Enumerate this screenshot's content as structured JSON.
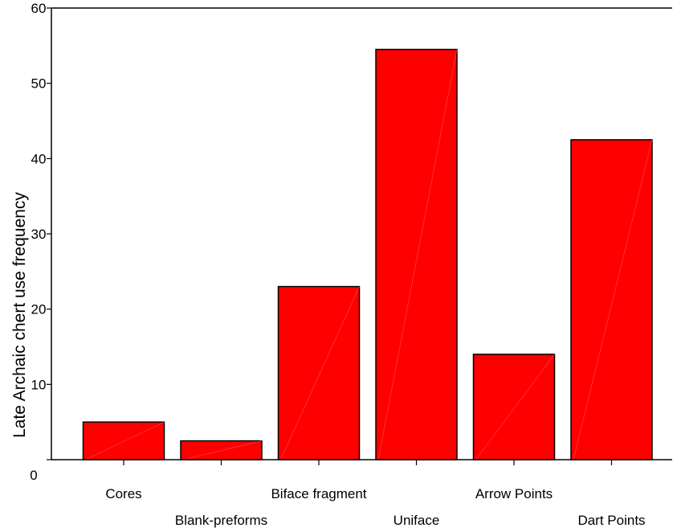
{
  "chart_data": {
    "type": "bar",
    "title": "",
    "xlabel": "",
    "ylabel": "Late Archaic chert use frequency",
    "categories": [
      "Cores",
      "Blank-preforms",
      "Biface fragment",
      "Uniface",
      "Arrow Points",
      "Dart Points"
    ],
    "values": [
      5,
      2.5,
      23,
      54.5,
      14,
      42.5
    ],
    "ylim": [
      0,
      60
    ],
    "yticks": [
      0,
      10,
      20,
      30,
      40,
      50,
      60
    ],
    "grid": false,
    "legend": "none",
    "colors": {
      "bar_fill": "#ff0000",
      "bar_stroke": "#000000",
      "axis": "#000000"
    }
  }
}
